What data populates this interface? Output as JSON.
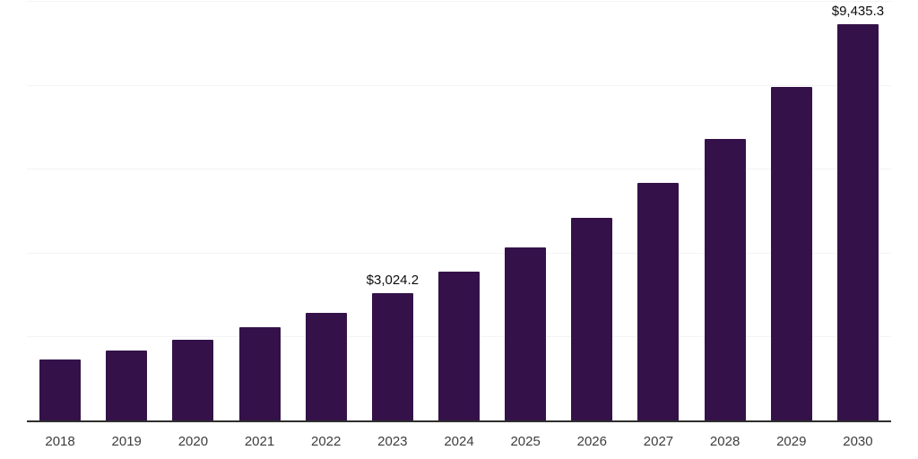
{
  "chart_data": {
    "type": "bar",
    "title": "",
    "xlabel": "",
    "ylabel": "",
    "categories": [
      "2018",
      "2019",
      "2020",
      "2021",
      "2022",
      "2023",
      "2024",
      "2025",
      "2026",
      "2027",
      "2028",
      "2029",
      "2030"
    ],
    "values": [
      1450.0,
      1660.0,
      1920.0,
      2215.0,
      2575.0,
      3024.2,
      3540.0,
      4130.0,
      4840.0,
      5670.0,
      6715.0,
      7940.0,
      9435.3
    ],
    "data_labels": [
      "",
      "",
      "",
      "",
      "",
      "$3,024.2",
      "",
      "",
      "",
      "",
      "",
      "",
      "$9,435.3"
    ],
    "ylim": [
      0,
      10000
    ],
    "gridline_values": [
      2000,
      4000,
      6000,
      8000,
      10000
    ],
    "grid": true,
    "legend": false,
    "y_axis_ticks_visible": false,
    "colors": {
      "bar": "#341249",
      "axis_line": "#2e2e2e",
      "gridline": "#f3f3f3",
      "data_label": "#0d0d0d",
      "tick_label": "#3d3d3d",
      "background": "#ffffff"
    }
  }
}
